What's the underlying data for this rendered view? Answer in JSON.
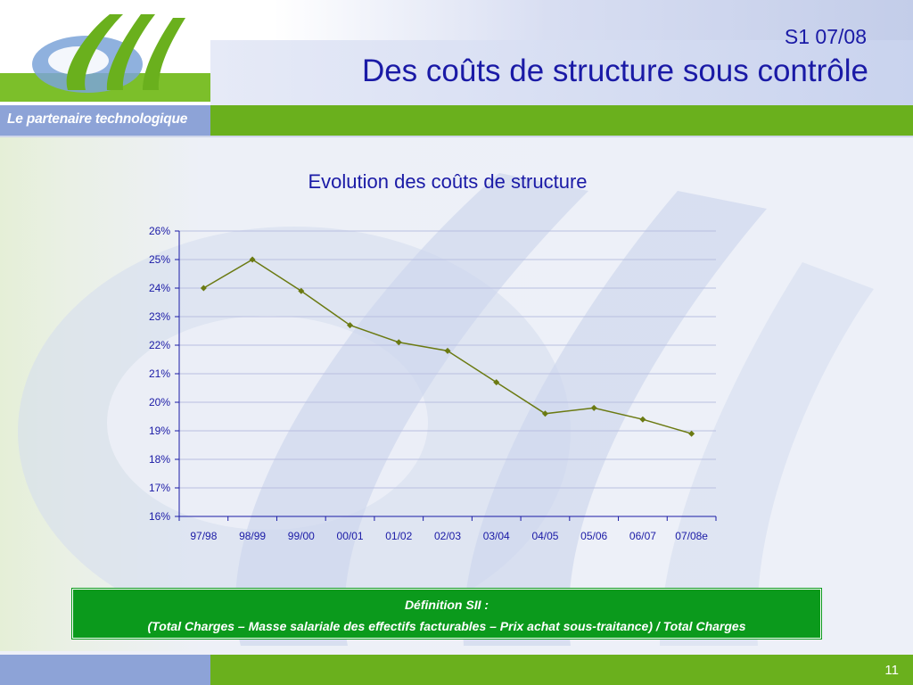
{
  "header": {
    "date": "S1 07/08",
    "title": "Des coûts de structure sous contrôle",
    "tagline": "Le partenaire technologique",
    "logo_text": "SII"
  },
  "colors": {
    "title_blue": "#1a1aa6",
    "brand_green": "#6ab01d",
    "series_line": "#6b7a12",
    "series_marker": "#6b7a12",
    "definition_box": "#0b9a1c"
  },
  "chart_data": {
    "type": "line",
    "title": "Evolution des coûts de structure",
    "xlabel": "",
    "ylabel": "",
    "categories": [
      "97/98",
      "98/99",
      "99/00",
      "00/01",
      "01/02",
      "02/03",
      "03/04",
      "04/05",
      "05/06",
      "06/07",
      "07/08e"
    ],
    "series": [
      {
        "values": [
          24.0,
          25.0,
          23.9,
          22.7,
          22.1,
          21.8,
          20.7,
          19.6,
          19.8,
          19.4,
          18.9
        ]
      }
    ],
    "ylim": [
      16,
      26
    ],
    "yticks": [
      "16%",
      "17%",
      "18%",
      "19%",
      "20%",
      "21%",
      "22%",
      "23%",
      "24%",
      "25%",
      "26%"
    ],
    "grid": true,
    "legend": "none"
  },
  "definition": {
    "title": "Définition SII :",
    "formula": "(Total Charges – Masse salariale des effectifs facturables – Prix achat sous-traitance) / Total Charges"
  },
  "footer": {
    "page_number": "11"
  }
}
